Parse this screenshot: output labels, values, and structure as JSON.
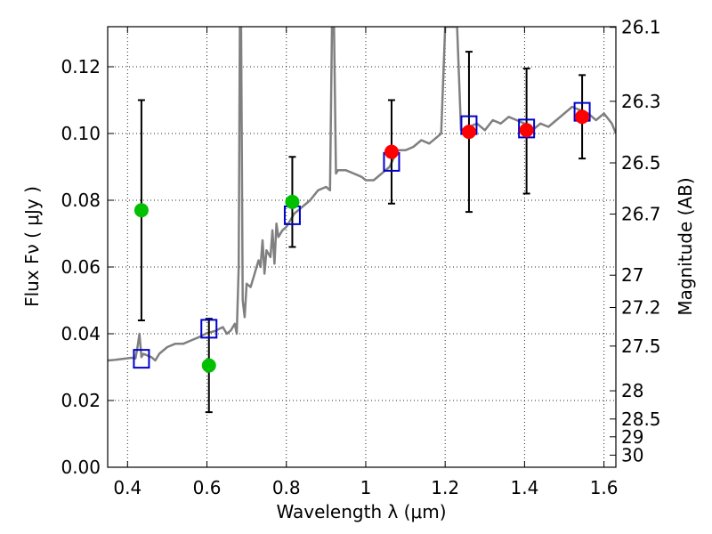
{
  "chart_data": {
    "type": "scatter",
    "title": "",
    "xlabel": "Wavelength  λ (μm)",
    "ylabel": "Flux  Fν  ( μJy )",
    "y2label": "Magnitude (AB)",
    "xlim": [
      0.35,
      1.63
    ],
    "ylim": [
      0.0,
      0.132
    ],
    "grid": true,
    "legend": "none",
    "x_ticks": [
      0.4,
      0.6,
      0.8,
      1.0,
      1.2,
      1.4,
      1.6
    ],
    "x_tick_labels": [
      "0.4",
      "0.6",
      "0.8",
      "1",
      "1.2",
      "1.4",
      "1.6"
    ],
    "y_ticks": [
      0.0,
      0.02,
      0.04,
      0.06,
      0.08,
      0.1,
      0.12
    ],
    "y_tick_labels": [
      "0.00",
      "0.02",
      "0.04",
      "0.06",
      "0.08",
      "0.10",
      "0.12"
    ],
    "y2_ticks": [
      26.1,
      26.3,
      26.5,
      26.7,
      27,
      27.2,
      27.5,
      28,
      28.5,
      29,
      30
    ],
    "y2_tick_labels": [
      "26.1",
      "26.3",
      "26.5",
      "26.7",
      "27",
      "27.2",
      "27.5",
      "28",
      "28.5",
      "29",
      "30"
    ],
    "colors": {
      "template": "#808080",
      "model": "#0000cc",
      "green": "#00c000",
      "red": "#ff0000",
      "errorbar": "#000000"
    },
    "series": [
      {
        "kind": "line",
        "points": [
          [
            0.35,
            0.032
          ],
          [
            0.37,
            0.0322
          ],
          [
            0.39,
            0.0325
          ],
          [
            0.41,
            0.0328
          ],
          [
            0.42,
            0.0326
          ],
          [
            0.425,
            0.036
          ],
          [
            0.43,
            0.04
          ],
          [
            0.435,
            0.033
          ],
          [
            0.44,
            0.034
          ],
          [
            0.46,
            0.033
          ],
          [
            0.47,
            0.032
          ],
          [
            0.48,
            0.034
          ],
          [
            0.5,
            0.036
          ],
          [
            0.52,
            0.037
          ],
          [
            0.54,
            0.037
          ],
          [
            0.56,
            0.038
          ],
          [
            0.58,
            0.039
          ],
          [
            0.6,
            0.0402
          ],
          [
            0.62,
            0.0408
          ],
          [
            0.64,
            0.042
          ],
          [
            0.65,
            0.04
          ],
          [
            0.66,
            0.041
          ],
          [
            0.67,
            0.043
          ],
          [
            0.675,
            0.04
          ],
          [
            0.68,
            0.06
          ],
          [
            0.683,
            0.132
          ],
          [
            0.686,
            0.132
          ],
          [
            0.69,
            0.05
          ],
          [
            0.695,
            0.045
          ],
          [
            0.7,
            0.055
          ],
          [
            0.71,
            0.054
          ],
          [
            0.72,
            0.058
          ],
          [
            0.73,
            0.062
          ],
          [
            0.735,
            0.06
          ],
          [
            0.74,
            0.068
          ],
          [
            0.745,
            0.058
          ],
          [
            0.75,
            0.065
          ],
          [
            0.76,
            0.063
          ],
          [
            0.765,
            0.071
          ],
          [
            0.77,
            0.061
          ],
          [
            0.775,
            0.073
          ],
          [
            0.78,
            0.069
          ],
          [
            0.79,
            0.071
          ],
          [
            0.8,
            0.072
          ],
          [
            0.82,
            0.076
          ],
          [
            0.84,
            0.078
          ],
          [
            0.86,
            0.08
          ],
          [
            0.88,
            0.083
          ],
          [
            0.9,
            0.084
          ],
          [
            0.91,
            0.083
          ],
          [
            0.915,
            0.132
          ],
          [
            0.92,
            0.132
          ],
          [
            0.925,
            0.088
          ],
          [
            0.93,
            0.089
          ],
          [
            0.95,
            0.089
          ],
          [
            0.97,
            0.088
          ],
          [
            0.99,
            0.087
          ],
          [
            1.0,
            0.086
          ],
          [
            1.02,
            0.086
          ],
          [
            1.04,
            0.088
          ],
          [
            1.06,
            0.09
          ],
          [
            1.08,
            0.095
          ],
          [
            1.1,
            0.095
          ],
          [
            1.12,
            0.096
          ],
          [
            1.14,
            0.098
          ],
          [
            1.16,
            0.097
          ],
          [
            1.18,
            0.099
          ],
          [
            1.19,
            0.1
          ],
          [
            1.2,
            0.132
          ],
          [
            1.22,
            0.132
          ],
          [
            1.23,
            0.132
          ],
          [
            1.24,
            0.101
          ],
          [
            1.26,
            0.102
          ],
          [
            1.28,
            0.103
          ],
          [
            1.3,
            0.101
          ],
          [
            1.32,
            0.104
          ],
          [
            1.34,
            0.103
          ],
          [
            1.36,
            0.105
          ],
          [
            1.38,
            0.104
          ],
          [
            1.4,
            0.103
          ],
          [
            1.42,
            0.101
          ],
          [
            1.44,
            0.103
          ],
          [
            1.46,
            0.102
          ],
          [
            1.48,
            0.104
          ],
          [
            1.5,
            0.106
          ],
          [
            1.52,
            0.108
          ],
          [
            1.54,
            0.107
          ],
          [
            1.56,
            0.106
          ],
          [
            1.58,
            0.104
          ],
          [
            1.6,
            0.106
          ],
          [
            1.62,
            0.103
          ],
          [
            1.63,
            0.1
          ]
        ]
      },
      {
        "kind": "model_squares",
        "points": [
          [
            0.435,
            0.0325
          ],
          [
            0.605,
            0.0415
          ],
          [
            0.815,
            0.0755
          ],
          [
            1.065,
            0.0915
          ],
          [
            1.26,
            0.1025
          ],
          [
            1.405,
            0.1015
          ],
          [
            1.545,
            0.1065
          ]
        ]
      },
      {
        "kind": "observed_green",
        "points": [
          [
            0.435,
            0.077,
            0.044,
            0.11
          ],
          [
            0.605,
            0.0305,
            0.0165,
            0.0445
          ],
          [
            0.815,
            0.0795,
            0.066,
            0.093
          ]
        ]
      },
      {
        "kind": "observed_red",
        "points": [
          [
            1.065,
            0.0945,
            0.079,
            0.11
          ],
          [
            1.26,
            0.1005,
            0.0765,
            0.1245
          ],
          [
            1.405,
            0.101,
            0.082,
            0.1195
          ],
          [
            1.545,
            0.105,
            0.0925,
            0.1175
          ]
        ]
      }
    ]
  }
}
